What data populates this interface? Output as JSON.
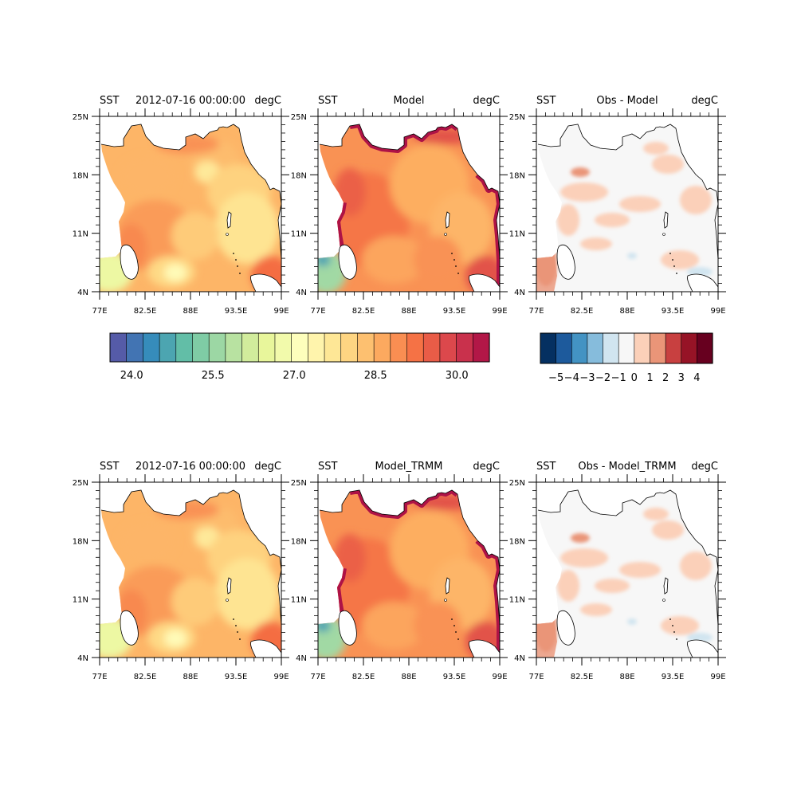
{
  "figure": {
    "panels": [
      {
        "row": 0,
        "col": 0,
        "left": "SST",
        "center": "2012-07-16 00:00:00",
        "right": "degC",
        "field": "obs"
      },
      {
        "row": 0,
        "col": 1,
        "left": "SST",
        "center": "Model",
        "right": "degC",
        "field": "model"
      },
      {
        "row": 0,
        "col": 2,
        "left": "SST",
        "center": "Obs - Model",
        "right": "degC",
        "field": "diff"
      },
      {
        "row": 1,
        "col": 0,
        "left": "SST",
        "center": "2012-07-16 00:00:00",
        "right": "degC",
        "field": "obs"
      },
      {
        "row": 1,
        "col": 1,
        "left": "SST",
        "center": "Model_TRMM",
        "right": "degC",
        "field": "model"
      },
      {
        "row": 1,
        "col": 2,
        "left": "SST",
        "center": "Obs - Model_TRMM",
        "right": "degC",
        "field": "diff"
      }
    ],
    "lat_ticks": [
      "25N",
      "18N",
      "11N",
      "4N"
    ],
    "lon_ticks": [
      "77E",
      "82.5E",
      "88E",
      "93.5E",
      "99E"
    ],
    "colorbar_sst": {
      "range": [
        23.6,
        30.6
      ],
      "step": 0.3,
      "labels": [
        "24.0",
        "25.5",
        "27.0",
        "28.5",
        "30.0"
      ],
      "colormap": "Spectral_r"
    },
    "colorbar_diff": {
      "labels": [
        "−5",
        "−4",
        "−3",
        "−2",
        "−1",
        "0",
        "1",
        "2",
        "3",
        "4"
      ],
      "colors": [
        "#053061",
        "#1d5a9c",
        "#4393c3",
        "#86bcdc",
        "#d1e5f0",
        "#f7f7f7",
        "#fbd0b9",
        "#ea9578",
        "#c84040",
        "#961326",
        "#67001f"
      ]
    }
  }
}
